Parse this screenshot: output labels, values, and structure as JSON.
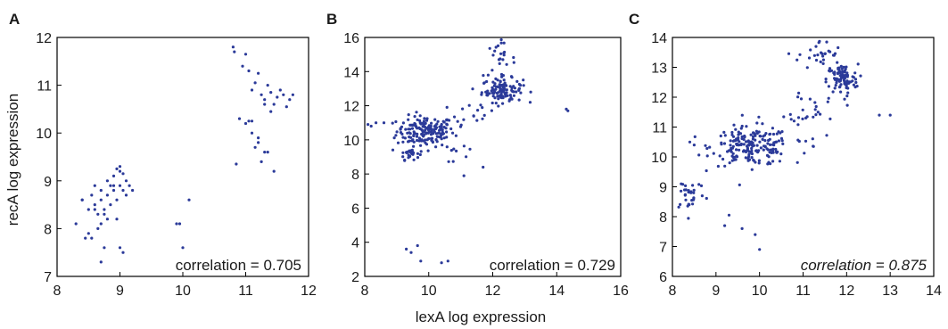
{
  "figure": {
    "ylabel": "recA log expression",
    "xlabel": "lexA log expression",
    "point_color": "#2b3a99"
  },
  "chart_data": [
    {
      "type": "scatter",
      "panel": "A",
      "annotation": "correlation = 0.705",
      "annotation_italic": false,
      "xlim": [
        8,
        12
      ],
      "ylim": [
        7,
        12
      ],
      "xticks": [
        8,
        9,
        10,
        11,
        12
      ],
      "yticks": [
        7,
        8,
        9,
        10,
        11,
        12
      ],
      "x": [
        8.3,
        8.4,
        8.45,
        8.5,
        8.55,
        8.6,
        8.6,
        8.65,
        8.7,
        8.7,
        8.75,
        8.8,
        8.8,
        8.85,
        8.9,
        8.9,
        8.95,
        9.0,
        9.0,
        9.05,
        9.1,
        9.15,
        9.2,
        9.0,
        9.05,
        8.7,
        8.75,
        8.8,
        8.65,
        8.55,
        8.9,
        9.1,
        8.6,
        8.75,
        8.85,
        8.95,
        8.4,
        8.5,
        8.95,
        9.0,
        8.7,
        9.05,
        9.9,
        9.95,
        10.0,
        10.1,
        10.8,
        10.82,
        10.95,
        11.0,
        11.05,
        11.1,
        11.15,
        11.2,
        11.25,
        11.3,
        11.35,
        11.4,
        11.45,
        11.5,
        11.55,
        11.6,
        11.65,
        11.7,
        11.75,
        11.0,
        11.1,
        11.2,
        11.3,
        10.9,
        11.05,
        11.15,
        11.25,
        11.35,
        11.45,
        11.2,
        11.1,
        10.85,
        11.3,
        11.4
      ],
      "y": [
        8.1,
        8.6,
        7.8,
        8.4,
        8.7,
        8.5,
        8.9,
        8.3,
        8.6,
        8.8,
        8.4,
        8.7,
        9.0,
        8.5,
        8.8,
        9.1,
        8.6,
        8.9,
        9.2,
        8.8,
        9.0,
        8.9,
        8.8,
        7.6,
        7.5,
        7.3,
        7.6,
        8.2,
        8.0,
        7.8,
        8.9,
        8.7,
        8.4,
        8.3,
        8.9,
        8.2,
        8.6,
        7.9,
        9.25,
        9.3,
        8.1,
        9.15,
        8.1,
        8.1,
        7.6,
        8.6,
        11.8,
        11.7,
        11.4,
        11.65,
        11.3,
        10.9,
        11.05,
        11.25,
        10.8,
        10.7,
        11.0,
        10.85,
        10.6,
        10.75,
        10.9,
        10.8,
        10.55,
        10.7,
        10.8,
        10.2,
        10.0,
        9.9,
        9.6,
        10.3,
        10.25,
        9.7,
        9.4,
        9.6,
        9.2,
        9.8,
        10.25,
        9.35,
        10.6,
        10.45
      ]
    },
    {
      "type": "scatter",
      "panel": "B",
      "annotation": "correlation = 0.729",
      "annotation_italic": false,
      "xlim": [
        8,
        16
      ],
      "ylim": [
        2,
        16
      ],
      "xticks": [
        8,
        10,
        12,
        14,
        16
      ],
      "yticks": [
        2,
        4,
        6,
        8,
        10,
        12,
        14,
        16
      ],
      "clusters": [
        {
          "cx": 9.9,
          "cy": 10.5,
          "sx": 0.45,
          "sy": 0.45,
          "n": 170
        },
        {
          "cx": 9.4,
          "cy": 9.2,
          "sx": 0.15,
          "sy": 0.18,
          "n": 25
        },
        {
          "cx": 12.3,
          "cy": 12.9,
          "sx": 0.32,
          "sy": 0.35,
          "n": 110
        },
        {
          "cx": 12.2,
          "cy": 14.7,
          "sx": 0.25,
          "sy": 0.5,
          "n": 25
        },
        {
          "cx": 11.2,
          "cy": 11.4,
          "sx": 0.45,
          "sy": 0.6,
          "n": 18
        },
        {
          "cx": 10.8,
          "cy": 9.4,
          "sx": 0.4,
          "sy": 0.6,
          "n": 10
        }
      ],
      "x_extra": [
        8.2,
        8.35,
        8.6,
        8.1,
        14.3,
        14.35,
        9.3,
        9.45,
        9.65,
        9.75,
        10.4,
        10.6,
        11.1,
        11.7
      ],
      "y_extra": [
        10.8,
        11.0,
        11.0,
        10.9,
        11.8,
        11.7,
        3.6,
        3.4,
        3.8,
        2.9,
        2.8,
        2.9,
        7.9,
        8.4
      ]
    },
    {
      "type": "scatter",
      "panel": "C",
      "annotation": "correlation = 0.875",
      "annotation_italic": true,
      "xlim": [
        8,
        14
      ],
      "ylim": [
        6,
        14
      ],
      "xticks": [
        8,
        9,
        10,
        11,
        12,
        13,
        14
      ],
      "yticks": [
        6,
        7,
        8,
        9,
        10,
        11,
        12,
        13,
        14
      ],
      "clusters": [
        {
          "cx": 9.8,
          "cy": 10.35,
          "sx": 0.45,
          "sy": 0.32,
          "n": 190
        },
        {
          "cx": 11.9,
          "cy": 12.6,
          "sx": 0.18,
          "sy": 0.25,
          "n": 90
        },
        {
          "cx": 8.4,
          "cy": 8.8,
          "sx": 0.18,
          "sy": 0.3,
          "n": 30
        },
        {
          "cx": 11.4,
          "cy": 13.4,
          "sx": 0.25,
          "sy": 0.25,
          "n": 28
        },
        {
          "cx": 11.3,
          "cy": 11.7,
          "sx": 0.3,
          "sy": 0.3,
          "n": 22
        },
        {
          "cx": 10.9,
          "cy": 10.9,
          "sx": 0.35,
          "sy": 0.4,
          "n": 14
        }
      ],
      "x_extra": [
        9.2,
        9.3,
        9.6,
        9.9,
        10.0,
        12.75,
        13.0,
        8.4,
        8.5,
        8.2
      ],
      "y_extra": [
        7.7,
        8.05,
        7.6,
        7.4,
        6.9,
        11.4,
        11.4,
        10.5,
        10.4,
        9.1
      ]
    }
  ]
}
